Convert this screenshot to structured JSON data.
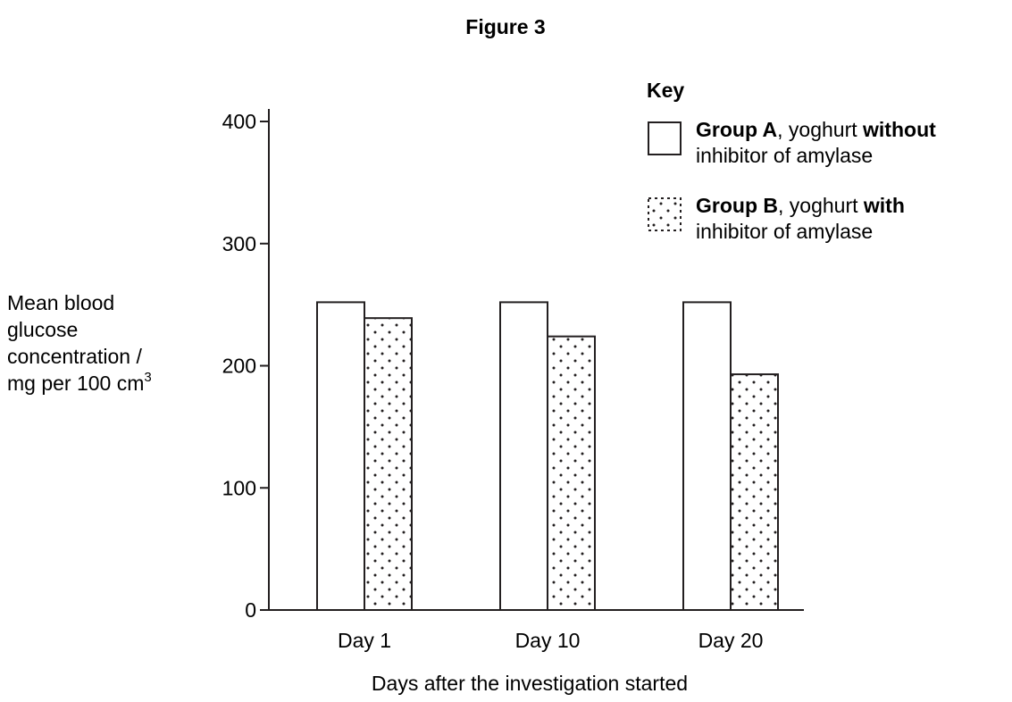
{
  "chart_data": {
    "type": "bar",
    "title": "Figure 3",
    "ylabel_lines": [
      "Mean blood",
      "glucose",
      "concentration /",
      "mg per 100 cm"
    ],
    "ylabel_superscript": "3",
    "xlabel": "Days after the investigation started",
    "categories": [
      "Day 1",
      "Day 10",
      "Day 20"
    ],
    "series": [
      {
        "name": "Group A, yoghurt without inhibitor of amylase",
        "values": [
          252,
          252,
          252
        ],
        "fill": "#ffffff",
        "pattern": "none"
      },
      {
        "name": "Group B, yoghurt with inhibitor of amylase",
        "values": [
          239,
          224,
          193
        ],
        "fill": "#ffffff",
        "pattern": "dots"
      }
    ],
    "ylim": [
      0,
      400
    ],
    "yticks": [
      0,
      100,
      200,
      300,
      400
    ],
    "grid": false,
    "legend": {
      "title": "Key",
      "position": "top-right",
      "items": [
        {
          "bold1": "Group A",
          "text1": ", yoghurt ",
          "bold2": "without",
          "line2": "inhibitor of amylase"
        },
        {
          "bold1": "Group B",
          "text1": ", yoghurt ",
          "bold2": "with",
          "line2": "inhibitor of amylase"
        }
      ]
    }
  }
}
